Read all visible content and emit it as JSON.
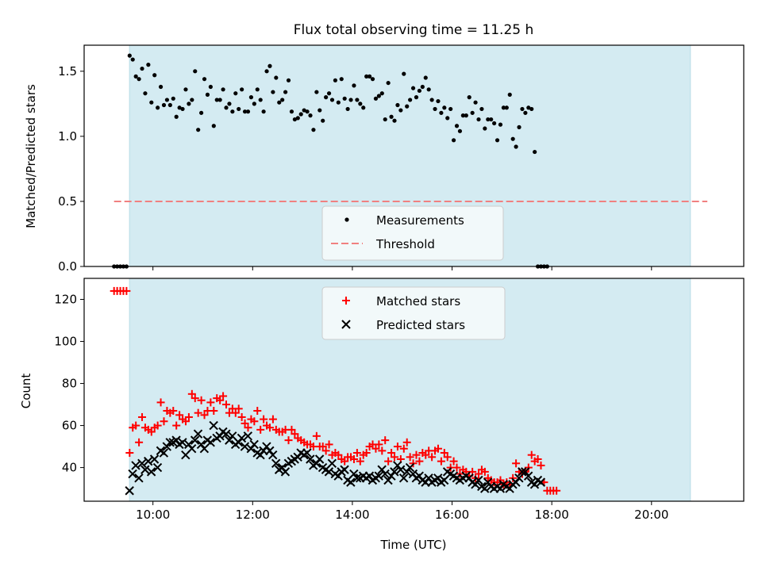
{
  "chart_data": [
    {
      "type": "scatter",
      "title": "Flux total observing time = 11.25 h",
      "ylabel": "Matched/Predicted stars",
      "xlim_hours": [
        8.62,
        21.85
      ],
      "ylim": [
        0,
        1.7
      ],
      "yticks": [
        0.0,
        0.5,
        1.0,
        1.5
      ],
      "ytick_labels": [
        "0.0",
        "0.5",
        "1.0",
        "1.5"
      ],
      "xticks_hours": [
        10,
        12,
        14,
        16,
        18,
        20
      ],
      "observing_window_hours": [
        9.53,
        20.78
      ],
      "threshold": 0.5,
      "threshold_x_range": [
        9.22,
        21.12
      ],
      "legend": {
        "position": "lower-center",
        "entries": [
          "Measurements",
          "Threshold"
        ]
      },
      "colors": {
        "window": "#d4ebf2",
        "threshold": "#f08080",
        "points": "#000000"
      },
      "series": [
        {
          "name": "Measurements",
          "x_start_hours": 9.22,
          "x_step_hours": 0.0625,
          "values": [
            0.0,
            0.0,
            0.0,
            0.0,
            0.0,
            1.62,
            1.59,
            1.46,
            1.44,
            1.52,
            1.33,
            1.55,
            1.26,
            1.47,
            1.22,
            1.38,
            1.24,
            1.28,
            1.24,
            1.29,
            1.15,
            1.22,
            1.21,
            1.36,
            1.25,
            1.28,
            1.5,
            1.05,
            1.18,
            1.44,
            1.32,
            1.38,
            1.08,
            1.28,
            1.28,
            1.36,
            1.22,
            1.25,
            1.19,
            1.33,
            1.21,
            1.36,
            1.19,
            1.19,
            1.3,
            1.25,
            1.36,
            1.28,
            1.19,
            1.5,
            1.54,
            1.34,
            1.45,
            1.26,
            1.28,
            1.34,
            1.43,
            1.19,
            1.13,
            1.14,
            1.17,
            1.2,
            1.19,
            1.16,
            1.05,
            1.34,
            1.2,
            1.12,
            1.3,
            1.33,
            1.28,
            1.43,
            1.26,
            1.44,
            1.29,
            1.21,
            1.28,
            1.39,
            1.28,
            1.25,
            1.22,
            1.46,
            1.46,
            1.44,
            1.29,
            1.31,
            1.33,
            1.13,
            1.41,
            1.15,
            1.12,
            1.24,
            1.2,
            1.48,
            1.23,
            1.28,
            1.37,
            1.3,
            1.35,
            1.38,
            1.45,
            1.36,
            1.28,
            1.21,
            1.27,
            1.18,
            1.22,
            1.14,
            1.21,
            0.97,
            1.08,
            1.04,
            1.16,
            1.16,
            1.3,
            1.18,
            1.26,
            1.13,
            1.21,
            1.06,
            1.13,
            1.13,
            1.1,
            0.97,
            1.09,
            1.22,
            1.22,
            1.32,
            0.98,
            0.92,
            1.07,
            1.21,
            1.18,
            1.22,
            1.21,
            0.88,
            0.0,
            0.0,
            0.0,
            0.0
          ]
        }
      ]
    },
    {
      "type": "scatter",
      "xlabel": "Time (UTC)",
      "ylabel": "Count",
      "xlim_hours": [
        8.62,
        21.85
      ],
      "ylim": [
        24,
        130
      ],
      "yticks": [
        40,
        60,
        80,
        100,
        120
      ],
      "ytick_labels": [
        "40",
        "60",
        "80",
        "100",
        "120"
      ],
      "xticks_hours": [
        10,
        12,
        14,
        16,
        18,
        20
      ],
      "xtick_labels": [
        "10:00",
        "12:00",
        "14:00",
        "16:00",
        "18:00",
        "20:00"
      ],
      "observing_window_hours": [
        9.53,
        20.78
      ],
      "legend": {
        "position": "upper-center",
        "entries": [
          "Matched stars",
          "Predicted stars"
        ]
      },
      "colors": {
        "window": "#d4ebf2",
        "matched": "#ff0000",
        "predicted": "#000000"
      },
      "series": [
        {
          "name": "Matched stars",
          "marker": "plus",
          "x_start_hours": 9.22,
          "x_step_hours": 0.0625,
          "values": [
            124,
            124,
            124,
            124,
            124,
            47,
            59,
            60,
            52,
            64,
            59,
            58,
            57,
            59,
            60,
            71,
            62,
            67,
            66,
            67,
            60,
            65,
            63,
            62,
            64,
            75,
            73,
            66,
            72,
            65,
            67,
            71,
            67,
            73,
            72,
            74,
            70,
            66,
            68,
            66,
            68,
            64,
            61,
            59,
            63,
            62,
            67,
            58,
            63,
            60,
            59,
            63,
            58,
            57,
            57,
            58,
            53,
            58,
            56,
            54,
            53,
            52,
            51,
            51,
            50,
            55,
            50,
            50,
            48,
            51,
            46,
            47,
            46,
            44,
            43,
            45,
            45,
            44,
            47,
            43,
            46,
            47,
            50,
            51,
            49,
            51,
            48,
            53,
            43,
            47,
            45,
            50,
            44,
            49,
            52,
            45,
            42,
            46,
            43,
            47,
            46,
            48,
            45,
            48,
            49,
            43,
            47,
            45,
            40,
            43,
            40,
            37,
            39,
            38,
            36,
            38,
            35,
            37,
            39,
            38,
            35,
            34,
            33,
            33,
            34,
            32,
            33,
            32,
            35,
            42,
            38,
            37,
            38,
            40,
            46,
            43,
            44,
            41,
            33,
            29,
            29,
            29,
            29
          ]
        },
        {
          "name": "Predicted stars",
          "marker": "x",
          "x_start_hours": 9.53,
          "x_step_hours": 0.0625,
          "values": [
            29,
            37,
            41,
            35,
            42,
            39,
            43,
            38,
            44,
            40,
            48,
            47,
            50,
            52,
            52,
            53,
            51,
            52,
            46,
            51,
            49,
            53,
            56,
            51,
            49,
            53,
            52,
            60,
            54,
            55,
            57,
            56,
            53,
            55,
            51,
            52,
            54,
            50,
            55,
            49,
            51,
            47,
            46,
            48,
            50,
            48,
            46,
            42,
            39,
            40,
            38,
            42,
            43,
            44,
            45,
            47,
            46,
            47,
            44,
            41,
            42,
            44,
            40,
            39,
            38,
            42,
            37,
            36,
            38,
            39,
            34,
            33,
            37,
            35,
            35,
            36,
            35,
            36,
            34,
            35,
            36,
            39,
            37,
            34,
            36,
            38,
            41,
            39,
            35,
            38,
            40,
            37,
            35,
            36,
            34,
            33,
            35,
            33,
            34,
            35,
            33,
            34,
            38,
            37,
            36,
            35,
            34,
            35,
            36,
            35,
            33,
            32,
            34,
            31,
            30,
            33,
            31,
            30,
            31,
            30,
            32,
            31,
            30,
            32,
            33,
            35,
            38,
            38,
            36,
            33,
            32,
            34,
            33
          ]
        }
      ]
    }
  ]
}
